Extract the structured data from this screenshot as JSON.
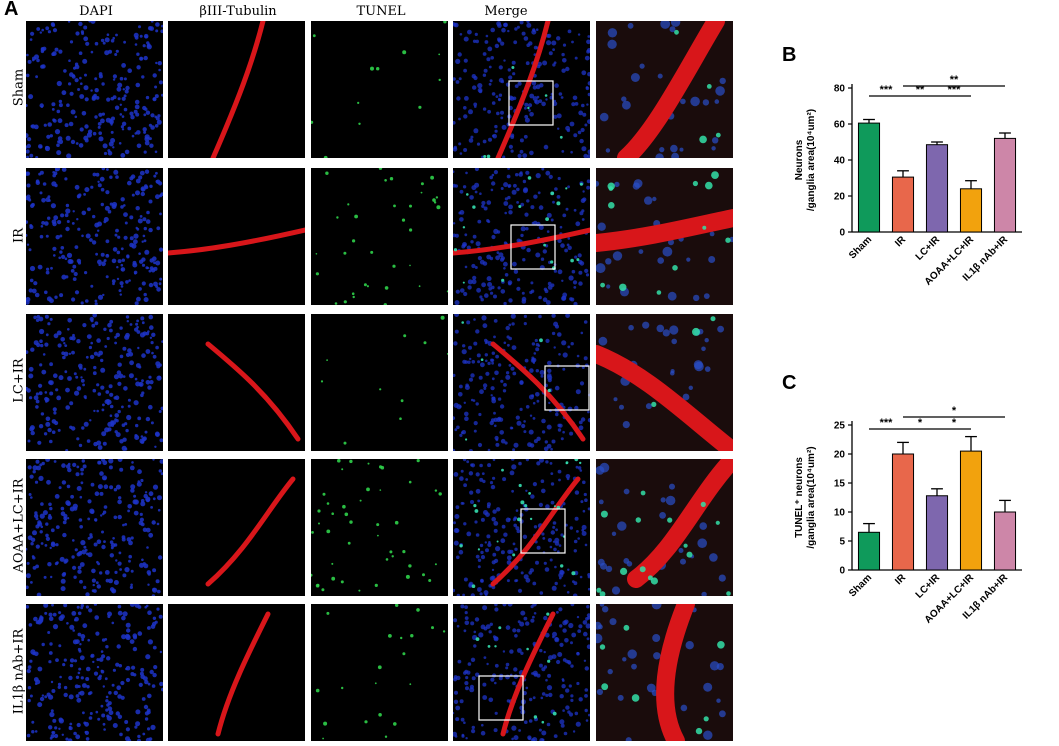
{
  "figure": {
    "panel_a_letter": "A",
    "panel_b_letter": "B",
    "panel_c_letter": "C",
    "columns": [
      "DAPI",
      "βIII-Tubulin",
      "TUNEL",
      "Merge",
      ""
    ],
    "rows": [
      "Sham",
      "IR",
      "LC+IR",
      "AOAA+LC+IR",
      "IL1β nAb+IR"
    ]
  },
  "chart_data": [
    {
      "type": "bar",
      "panel": "B",
      "categories": [
        "Sham",
        "IR",
        "LC+IR",
        "AOAA+LC+IR",
        "IL1β nAb+IR"
      ],
      "values": [
        60.5,
        30.5,
        48.5,
        24.0,
        52.0
      ],
      "errors": [
        2.0,
        3.5,
        1.5,
        4.5,
        3.0
      ],
      "colors": [
        "#0f9a5b",
        "#e8674b",
        "#7e67ae",
        "#f2a20d",
        "#cd86a8"
      ],
      "ylabel_line1": "Neurons",
      "ylabel_line2": "/ganglia area(10⁴um²)",
      "ylim": [
        0,
        80
      ],
      "yticks": [
        0,
        20,
        40,
        60,
        80
      ],
      "significance": [
        {
          "from": 0,
          "to": 1,
          "label": "***",
          "level": 0
        },
        {
          "from": 1,
          "to": 2,
          "label": "**",
          "level": 0
        },
        {
          "from": 2,
          "to": 3,
          "label": "***",
          "level": 0
        },
        {
          "from": 1,
          "to": 4,
          "label": "**",
          "level": 1
        }
      ]
    },
    {
      "type": "bar",
      "panel": "C",
      "categories": [
        "Sham",
        "IR",
        "LC+IR",
        "AOAA+LC+IR",
        "IL1β nAb+IR"
      ],
      "values": [
        6.5,
        20.0,
        12.8,
        20.5,
        10.0
      ],
      "errors": [
        1.5,
        2.0,
        1.2,
        2.5,
        2.0
      ],
      "colors": [
        "#0f9a5b",
        "#e8674b",
        "#7e67ae",
        "#f2a20d",
        "#cd86a8"
      ],
      "ylabel_line1": "TUNEL⁺ neurons",
      "ylabel_line2": "/ganglia area(10⁴um²)",
      "ylim": [
        0,
        25
      ],
      "yticks": [
        0,
        5,
        10,
        15,
        20,
        25
      ],
      "significance": [
        {
          "from": 0,
          "to": 1,
          "label": "***",
          "level": 0
        },
        {
          "from": 1,
          "to": 2,
          "label": "*",
          "level": 0
        },
        {
          "from": 2,
          "to": 3,
          "label": "*",
          "level": 0
        },
        {
          "from": 1,
          "to": 4,
          "label": "*",
          "level": 1
        }
      ]
    }
  ]
}
